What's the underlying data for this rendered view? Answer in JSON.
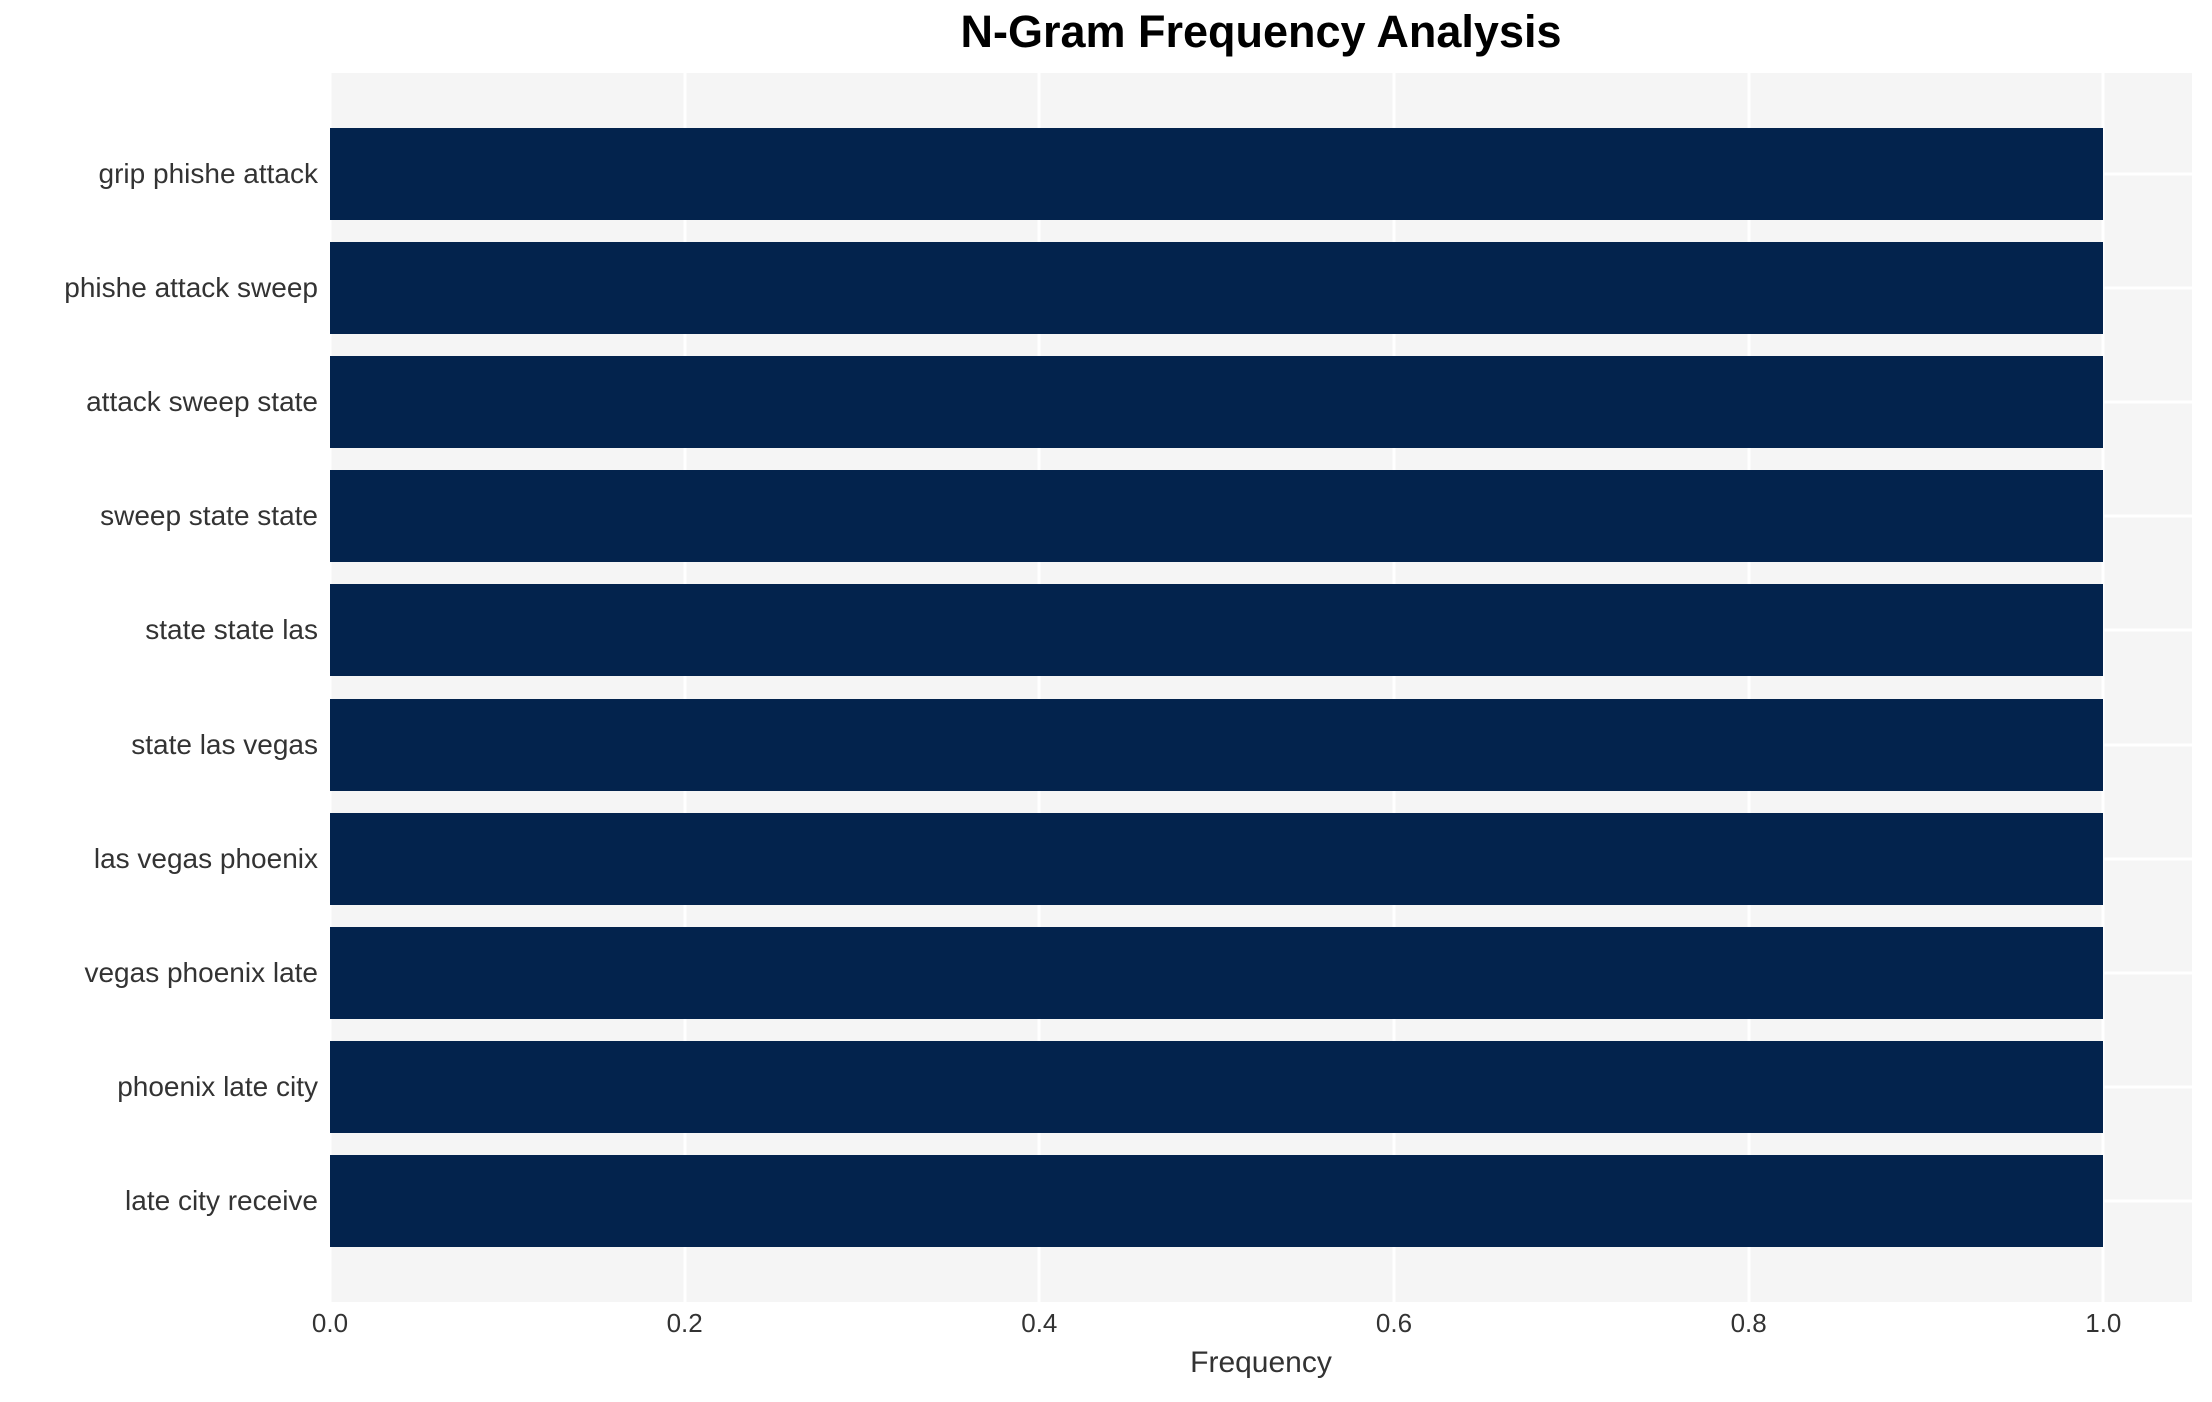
{
  "chart_data": {
    "type": "bar",
    "orientation": "horizontal",
    "title": "N-Gram Frequency Analysis",
    "xlabel": "Frequency",
    "ylabel": "",
    "categories": [
      "grip phishe attack",
      "phishe attack sweep",
      "attack sweep state",
      "sweep state state",
      "state state las",
      "state las vegas",
      "las vegas phoenix",
      "vegas phoenix late",
      "phoenix late city",
      "late city receive"
    ],
    "values": [
      1.0,
      1.0,
      1.0,
      1.0,
      1.0,
      1.0,
      1.0,
      1.0,
      1.0,
      1.0
    ],
    "x_tick_values": [
      0.0,
      0.2,
      0.4,
      0.6,
      0.8,
      1.0
    ],
    "x_tick_labels": [
      "0.0",
      "0.2",
      "0.4",
      "0.6",
      "0.8",
      "1.0"
    ],
    "xlim": [
      0,
      1.05
    ],
    "grid": true,
    "legend": null,
    "colors": {
      "bar": "#03234d",
      "plot_background": "#f5f5f5",
      "grid_line": "#ffffff",
      "tick_text": "#333333",
      "label_text": "#333333",
      "title_text": "#000000",
      "figure_background": "#ffffff"
    }
  }
}
